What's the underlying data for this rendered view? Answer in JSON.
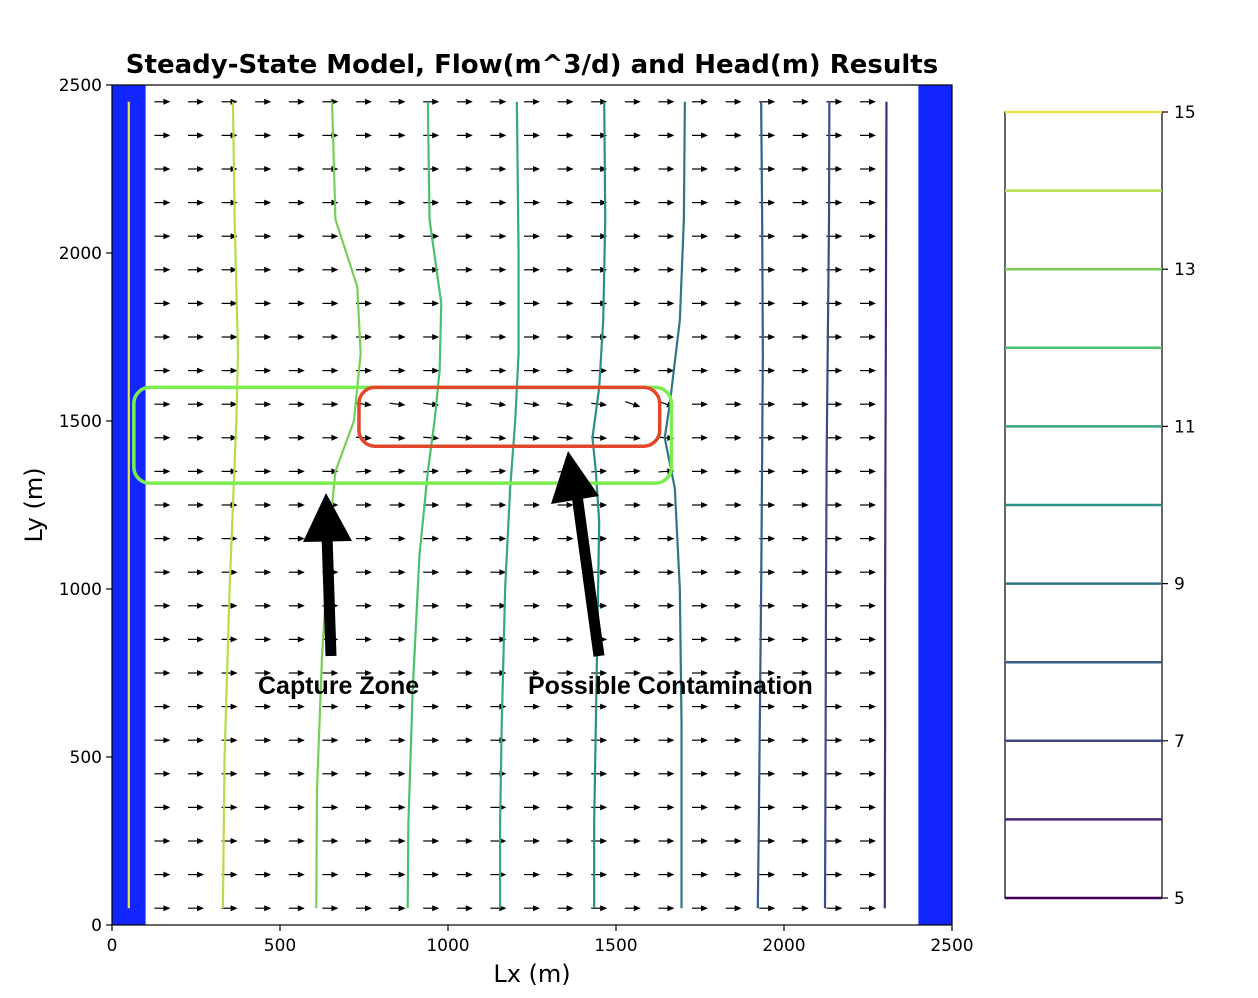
{
  "chart_data": {
    "type": "contour",
    "title": "Steady-State Model, Flow(m^3/d) and Head(m) Results",
    "xlabel": "Lx (m)",
    "ylabel": "Ly (m)",
    "xlim": [
      0,
      2500
    ],
    "ylim": [
      0,
      2500
    ],
    "xticks": [
      "0",
      "500",
      "1000",
      "1500",
      "2000",
      "2500"
    ],
    "yticks": [
      "0",
      "500",
      "1000",
      "1500",
      "2000",
      "2500"
    ],
    "boundaries": [
      {
        "name": "left-constant-head-boundary",
        "x": [
          0,
          100
        ],
        "color": "#1426ff"
      },
      {
        "name": "right-constant-head-boundary",
        "x": [
          2400,
          2500
        ],
        "color": "#1426ff"
      }
    ],
    "vector_field": {
      "x_start": 150,
      "x_end": 2300,
      "x_step": 100,
      "y_start": 50,
      "y_end": 2450,
      "y_step": 100,
      "direction": "east",
      "perturbed_rows": [
        1350,
        1450,
        1550
      ]
    },
    "contour_levels": [
      15,
      14,
      13,
      12,
      11,
      10,
      9,
      8,
      7,
      6,
      5
    ],
    "contours": [
      {
        "level": 15,
        "color": "#e8e34a",
        "pts": [
          [
            50,
            2450
          ],
          [
            50,
            50
          ]
        ]
      },
      {
        "level": 14,
        "color": "#b5dd4a",
        "pts": [
          [
            360,
            2450
          ],
          [
            365,
            2100
          ],
          [
            375,
            1700
          ],
          [
            370,
            1500
          ],
          [
            350,
            1000
          ],
          [
            335,
            500
          ],
          [
            330,
            50
          ]
        ]
      },
      {
        "level": 13,
        "color": "#77d055",
        "pts": [
          [
            655,
            2450
          ],
          [
            665,
            2100
          ],
          [
            730,
            1900
          ],
          [
            740,
            1700
          ],
          [
            720,
            1500
          ],
          [
            665,
            1350
          ],
          [
            650,
            1200
          ],
          [
            625,
            800
          ],
          [
            610,
            400
          ],
          [
            608,
            50
          ]
        ]
      },
      {
        "level": 12,
        "color": "#4bc16c",
        "pts": [
          [
            940,
            2450
          ],
          [
            945,
            2100
          ],
          [
            980,
            1850
          ],
          [
            975,
            1650
          ],
          [
            960,
            1500
          ],
          [
            940,
            1350
          ],
          [
            915,
            1100
          ],
          [
            895,
            700
          ],
          [
            882,
            300
          ],
          [
            880,
            50
          ]
        ]
      },
      {
        "level": 11,
        "color": "#35a97a",
        "pts": [
          [
            1205,
            2450
          ],
          [
            1210,
            2000
          ],
          [
            1210,
            1700
          ],
          [
            1200,
            1500
          ],
          [
            1185,
            1300
          ],
          [
            1170,
            1000
          ],
          [
            1160,
            600
          ],
          [
            1155,
            300
          ],
          [
            1155,
            50
          ]
        ]
      },
      {
        "level": 10,
        "color": "#2a8f84",
        "pts": [
          [
            1465,
            2450
          ],
          [
            1468,
            2100
          ],
          [
            1462,
            1800
          ],
          [
            1450,
            1600
          ],
          [
            1430,
            1450
          ],
          [
            1440,
            1350
          ],
          [
            1450,
            1200
          ],
          [
            1445,
            900
          ],
          [
            1440,
            600
          ],
          [
            1435,
            300
          ],
          [
            1435,
            50
          ]
        ]
      },
      {
        "level": 9,
        "color": "#2f7689",
        "pts": [
          [
            1705,
            2450
          ],
          [
            1702,
            2100
          ],
          [
            1690,
            1800
          ],
          [
            1660,
            1550
          ],
          [
            1645,
            1450
          ],
          [
            1675,
            1300
          ],
          [
            1690,
            1000
          ],
          [
            1695,
            600
          ],
          [
            1695,
            300
          ],
          [
            1695,
            50
          ]
        ]
      },
      {
        "level": 8,
        "color": "#355e8c",
        "pts": [
          [
            1932,
            2450
          ],
          [
            1935,
            2100
          ],
          [
            1937,
            1700
          ],
          [
            1935,
            1400
          ],
          [
            1932,
            1000
          ],
          [
            1928,
            600
          ],
          [
            1925,
            300
          ],
          [
            1922,
            50
          ]
        ]
      },
      {
        "level": 7,
        "color": "#3e4a89",
        "pts": [
          [
            2135,
            2450
          ],
          [
            2134,
            2100
          ],
          [
            2130,
            1700
          ],
          [
            2127,
            1400
          ],
          [
            2125,
            1000
          ],
          [
            2124,
            600
          ],
          [
            2123,
            300
          ],
          [
            2122,
            50
          ]
        ]
      },
      {
        "level": 6,
        "color": "#482878",
        "pts": [
          [
            2305,
            2450
          ],
          [
            2304,
            2100
          ],
          [
            2303,
            1700
          ],
          [
            2302,
            1400
          ],
          [
            2301,
            1000
          ],
          [
            2301,
            600
          ],
          [
            2300,
            300
          ],
          [
            2300,
            50
          ]
        ]
      }
    ],
    "annotations": [
      {
        "name": "capture-zone-box",
        "color": "#7aee4f",
        "x0": 65,
        "x1": 1665,
        "y0": 1315,
        "y1": 1600
      },
      {
        "name": "contamination-box",
        "color": "#e0472b",
        "x0": 735,
        "x1": 1630,
        "y0": 1425,
        "y1": 1600
      }
    ],
    "annotation_labels": {
      "capture_zone": "Capture Zone",
      "possible_contamination": "Possible Contamination"
    },
    "colorbar": {
      "ticks": [
        "15",
        "13",
        "11",
        "9",
        "7",
        "5"
      ],
      "min": 5,
      "max": 15
    }
  }
}
